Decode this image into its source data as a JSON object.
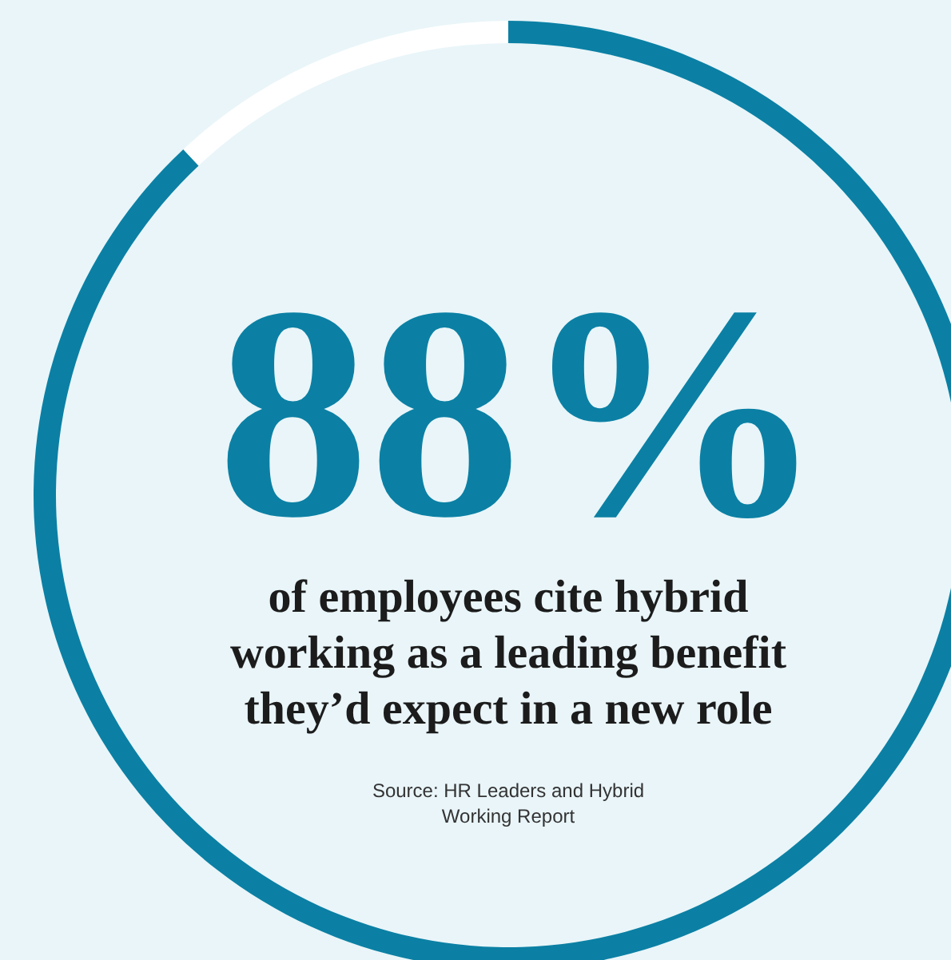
{
  "chart_data": {
    "type": "donut",
    "categories": [
      null,
      null
    ],
    "values": [
      88,
      12
    ],
    "colors": [
      "#0b80a4",
      "#ffffff"
    ],
    "value_labels": [
      "88%",
      null
    ],
    "title": "of employees cite hybrid\nworking as a leading benefit\nthey’d expect in a new role",
    "annotations": [
      "Source: HR Leaders and Hybrid\nWorking Report"
    ],
    "legend": false
  }
}
